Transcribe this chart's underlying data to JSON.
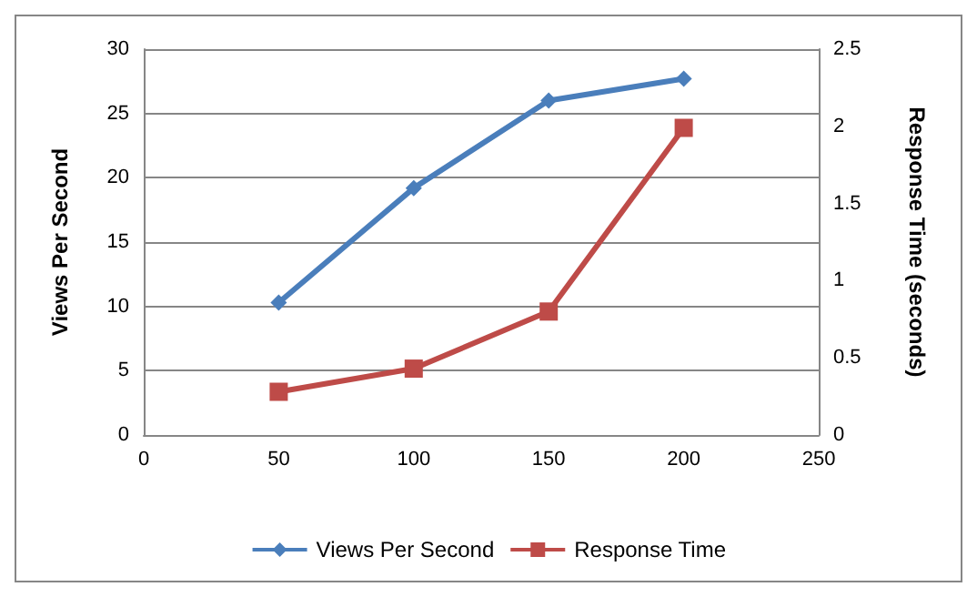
{
  "chart_data": {
    "type": "line",
    "x": [
      50,
      100,
      150,
      200
    ],
    "xlim": [
      0,
      250
    ],
    "xticks": [
      0,
      50,
      100,
      150,
      200,
      250
    ],
    "ylim": [
      0,
      30
    ],
    "yticks": [
      0,
      5,
      10,
      15,
      20,
      25,
      30
    ],
    "y2lim": [
      0,
      2.5
    ],
    "y2ticks": [
      0,
      0.5,
      1,
      1.5,
      2,
      2.5
    ],
    "ylabel": "Views Per Second",
    "y2label": "Response Time (seconds)",
    "series": [
      {
        "name": "Views Per Second",
        "color": "#4a7ebb",
        "marker": "diamond",
        "values": [
          10.3,
          19.2,
          26,
          27.7
        ]
      },
      {
        "name": "Response Time",
        "color": "#be4b48",
        "marker": "square",
        "axis": "y2",
        "values": [
          0.28,
          0.43,
          0.8,
          1.99
        ]
      }
    ],
    "grid": "y",
    "legend": "bottom"
  }
}
